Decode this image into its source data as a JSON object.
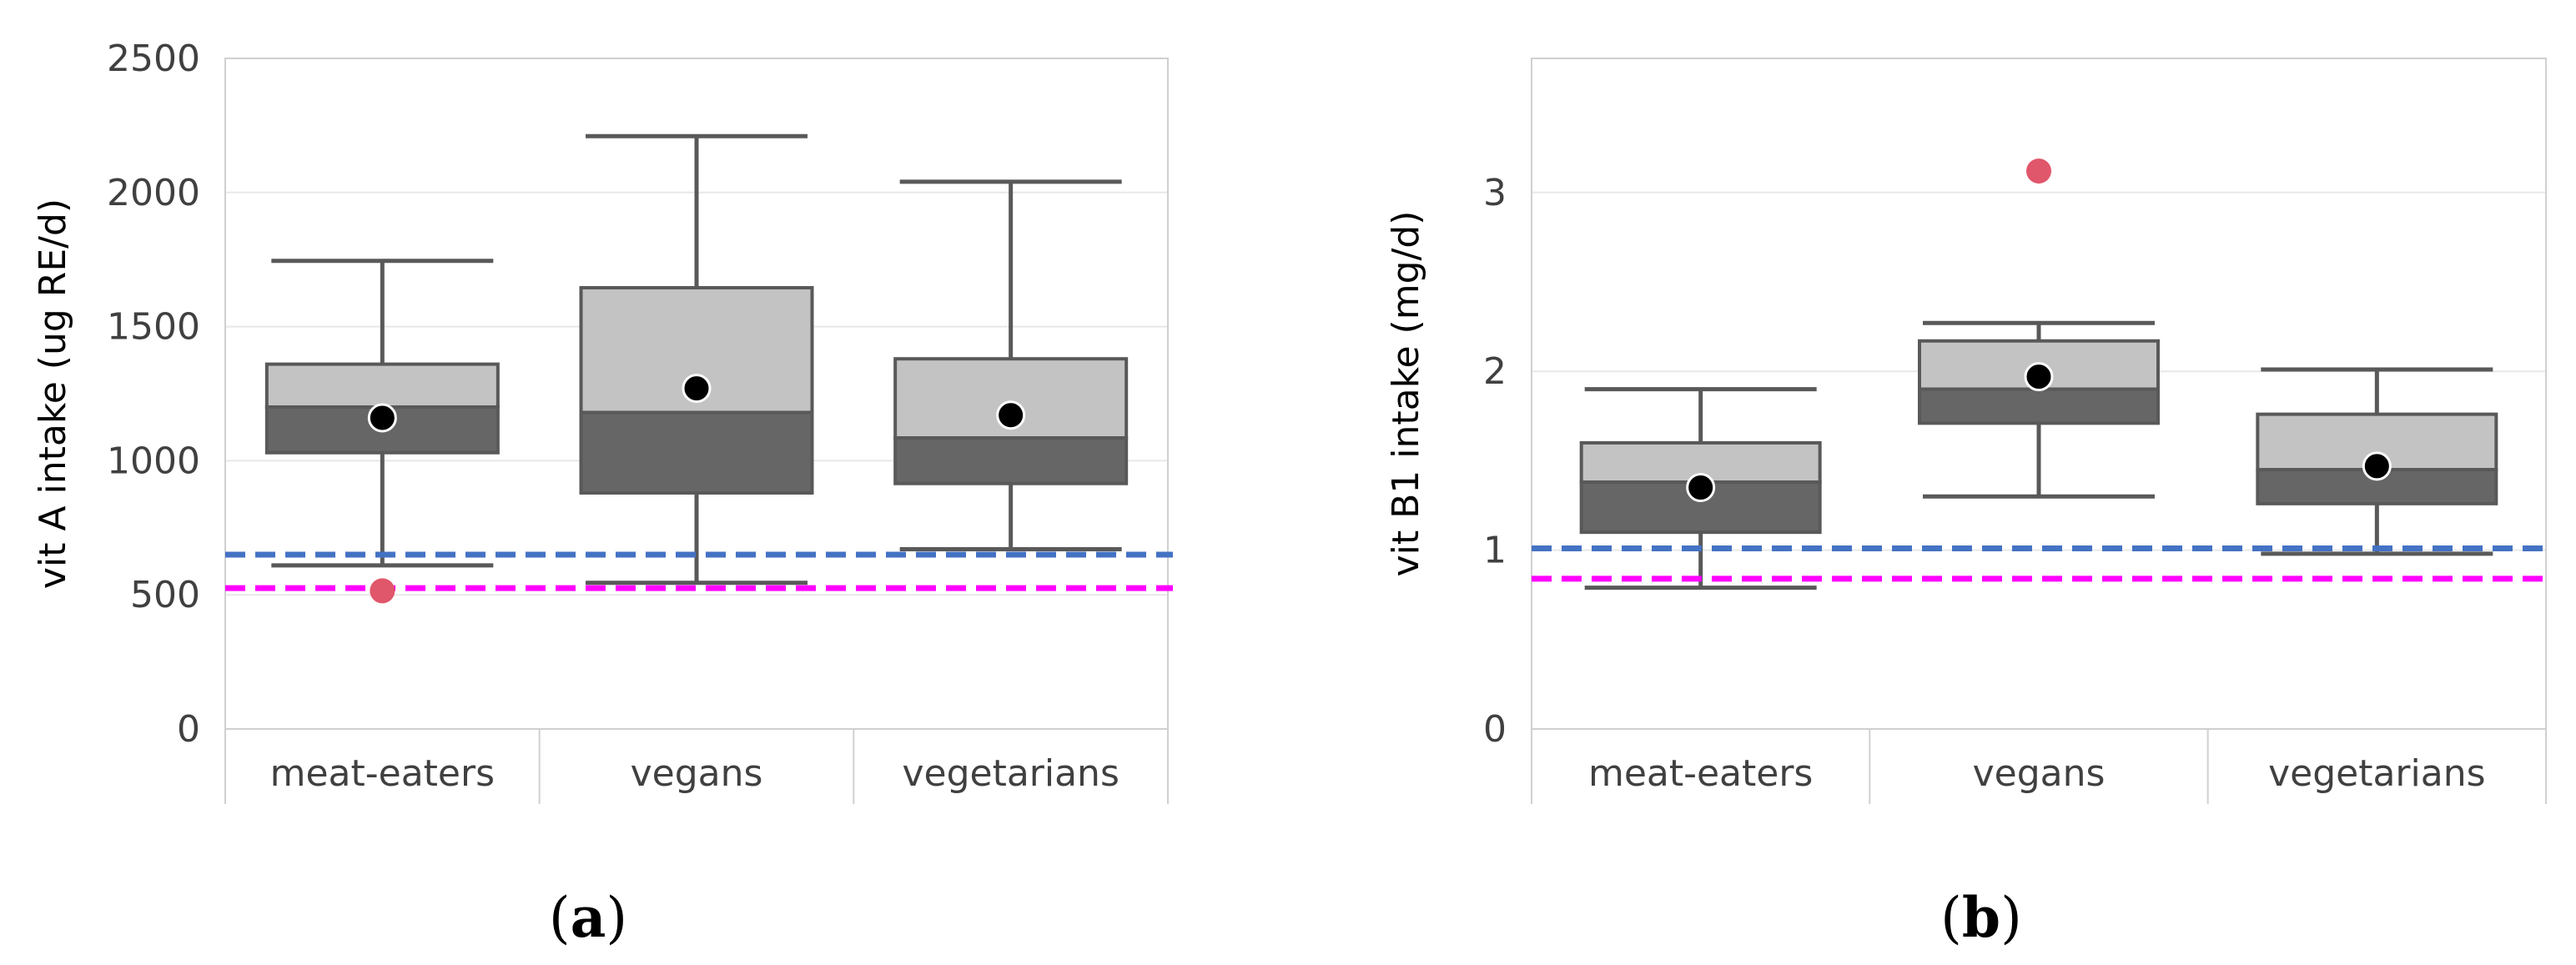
{
  "chart_data": [
    {
      "type": "boxplot",
      "panel_label": "a",
      "ylabel": "vit A intake (ug RE/d)",
      "ylim": [
        0,
        2500
      ],
      "yticks": [
        0,
        500,
        1000,
        1500,
        2000,
        2500
      ],
      "grid": true,
      "categories": [
        "meat-eaters",
        "vegans",
        "vegetarians"
      ],
      "boxes": [
        {
          "category": "meat-eaters",
          "min": 610,
          "q1": 1030,
          "median": 1200,
          "q3": 1360,
          "max": 1745,
          "mean": 1160,
          "outliers": [
            515
          ]
        },
        {
          "category": "vegans",
          "min": 545,
          "q1": 880,
          "median": 1180,
          "q3": 1645,
          "max": 2210,
          "mean": 1270,
          "outliers": []
        },
        {
          "category": "vegetarians",
          "min": 670,
          "q1": 915,
          "median": 1085,
          "q3": 1380,
          "max": 2040,
          "mean": 1170,
          "outliers": []
        }
      ],
      "reference_lines": [
        {
          "value": 650,
          "color": "#4472C4"
        },
        {
          "value": 525,
          "color": "#FF00FF"
        }
      ]
    },
    {
      "type": "boxplot",
      "panel_label": "b",
      "ylabel": "vit B1 intake (mg/d)",
      "ylim": [
        0,
        3.75
      ],
      "yticks": [
        0,
        1,
        2,
        3
      ],
      "grid": true,
      "categories": [
        "meat-eaters",
        "vegans",
        "vegetarians"
      ],
      "boxes": [
        {
          "category": "meat-eaters",
          "min": 0.79,
          "q1": 1.1,
          "median": 1.38,
          "q3": 1.6,
          "max": 1.9,
          "mean": 1.35,
          "outliers": []
        },
        {
          "category": "vegans",
          "min": 1.3,
          "q1": 1.71,
          "median": 1.9,
          "q3": 2.17,
          "max": 2.27,
          "mean": 1.97,
          "outliers": [
            3.12
          ]
        },
        {
          "category": "vegetarians",
          "min": 0.98,
          "q1": 1.26,
          "median": 1.45,
          "q3": 1.76,
          "max": 2.01,
          "mean": 1.47,
          "outliers": []
        }
      ],
      "reference_lines": [
        {
          "value": 1.01,
          "color": "#4472C4"
        },
        {
          "value": 0.84,
          "color": "#FF00FF"
        }
      ]
    }
  ],
  "colors": {
    "box_upper": "#C3C3C3",
    "box_lower": "#666666",
    "whisker": "#595959",
    "mean_marker": "#000000",
    "outlier": "#E0566A",
    "grid": "#E8E8E8",
    "frame": "#D0D0D0"
  }
}
